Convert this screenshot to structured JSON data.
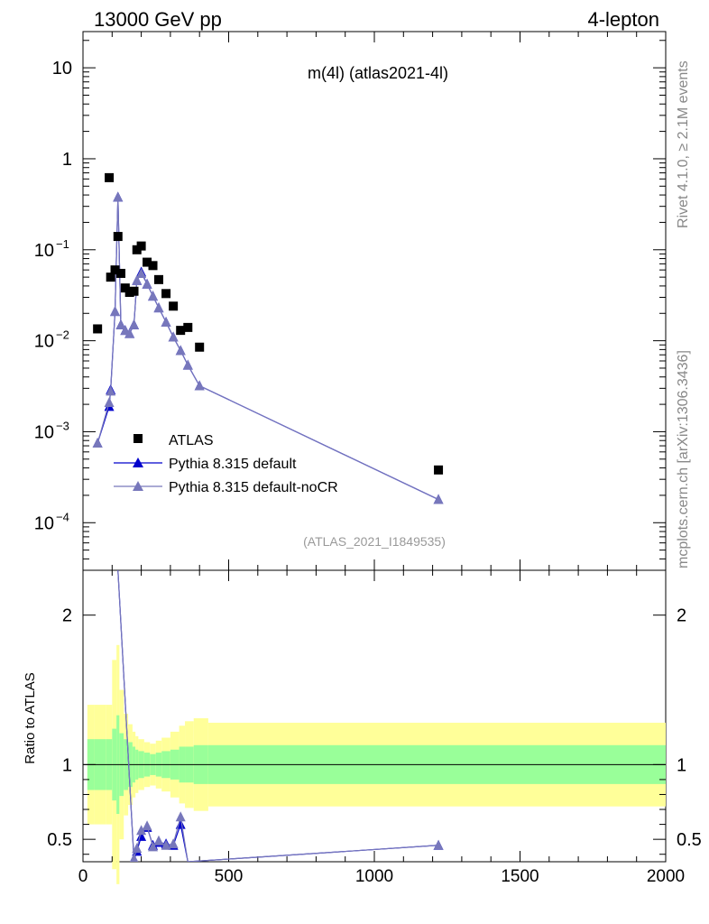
{
  "header": {
    "left": "13000 GeV pp",
    "right": "4-lepton"
  },
  "side": {
    "top": "Rivet 4.1.0, ≥ 2.1M events",
    "bottom": "mcplots.cern.ch [arXiv:1306.3436]"
  },
  "colors": {
    "data": "#000000",
    "default": "#0000cc",
    "noCR": "#7777bb",
    "band_inner": "#99ff99",
    "band_outer": "#ffff99"
  },
  "chart_data": {
    "type": "scatter",
    "title": "m(4l) (atlas2021-4l)",
    "analysis_tag": "(ATLAS_2021_I1849535)",
    "ratio_ylabel": "Ratio to ATLAS",
    "xlim": [
      0,
      2000
    ],
    "ylim_main": [
      3e-05,
      25
    ],
    "ylim_ratio": [
      0.35,
      2.3
    ],
    "x_ticks": [
      "0",
      "500",
      "1000",
      "1500",
      "2000"
    ],
    "y_ticks_main": [
      {
        "value": 10,
        "base": "10",
        "exp": ""
      },
      {
        "value": 1,
        "base": "1",
        "exp": ""
      },
      {
        "value": 0.1,
        "base": "10",
        "exp": "−1"
      },
      {
        "value": 0.01,
        "base": "10",
        "exp": "−2"
      },
      {
        "value": 0.001,
        "base": "10",
        "exp": "−3"
      },
      {
        "value": 0.0001,
        "base": "10",
        "exp": "−4"
      }
    ],
    "y_ticks_ratio": [
      "0.5",
      "1",
      "2"
    ],
    "legend": [
      {
        "label": "ATLAS",
        "marker": "square"
      },
      {
        "label": "Pythia 8.315 default",
        "marker": "triangle"
      },
      {
        "label": "Pythia 8.315 default-noCR",
        "marker": "triangle"
      }
    ],
    "data_points": [
      {
        "x": 50,
        "y": 0.0135
      },
      {
        "x": 90,
        "y": 0.62
      },
      {
        "x": 95,
        "y": 0.05
      },
      {
        "x": 110,
        "y": 0.06
      },
      {
        "x": 120,
        "y": 0.14
      },
      {
        "x": 130,
        "y": 0.055
      },
      {
        "x": 145,
        "y": 0.038
      },
      {
        "x": 160,
        "y": 0.034
      },
      {
        "x": 175,
        "y": 0.035
      },
      {
        "x": 185,
        "y": 0.1
      },
      {
        "x": 200,
        "y": 0.11
      },
      {
        "x": 220,
        "y": 0.073
      },
      {
        "x": 240,
        "y": 0.067
      },
      {
        "x": 260,
        "y": 0.047
      },
      {
        "x": 285,
        "y": 0.033
      },
      {
        "x": 310,
        "y": 0.024
      },
      {
        "x": 335,
        "y": 0.013
      },
      {
        "x": 360,
        "y": 0.014
      },
      {
        "x": 400,
        "y": 0.0085
      },
      {
        "x": 1220,
        "y": 0.00038
      }
    ],
    "series": [
      {
        "name": "Pythia 8.315 default",
        "x": [
          50,
          90,
          95,
          110,
          120,
          130,
          145,
          160,
          175,
          185,
          200,
          220,
          240,
          260,
          285,
          310,
          335,
          360,
          400,
          1220
        ],
        "y": [
          0.00075,
          0.0019,
          0.0029,
          0.021,
          0.38,
          0.015,
          0.013,
          0.012,
          0.015,
          0.046,
          0.057,
          0.042,
          0.031,
          0.023,
          0.016,
          0.011,
          0.0078,
          0.0054,
          0.0032,
          0.00018
        ]
      },
      {
        "name": "Pythia 8.315 default-noCR",
        "x": [
          50,
          90,
          95,
          110,
          120,
          130,
          145,
          160,
          175,
          185,
          200,
          220,
          240,
          260,
          285,
          310,
          335,
          360,
          400,
          1220
        ],
        "y": [
          0.00075,
          0.0021,
          0.0028,
          0.021,
          0.38,
          0.015,
          0.013,
          0.012,
          0.015,
          0.046,
          0.055,
          0.042,
          0.031,
          0.023,
          0.016,
          0.011,
          0.0078,
          0.0054,
          0.0032,
          0.00018
        ]
      }
    ],
    "ratio_series": [
      {
        "name": "Pythia 8.315 default",
        "x": [
          120,
          175,
          185,
          200,
          220,
          240,
          260,
          285,
          310,
          335,
          360,
          1220
        ],
        "y": [
          2.3,
          0.36,
          0.42,
          0.52,
          0.58,
          0.46,
          0.48,
          0.47,
          0.46,
          0.6,
          0.35,
          0.46
        ]
      },
      {
        "name": "Pythia 8.315 default-noCR",
        "x": [
          120,
          175,
          185,
          200,
          220,
          240,
          260,
          285,
          310,
          335,
          360,
          1220
        ],
        "y": [
          2.3,
          0.37,
          0.44,
          0.56,
          0.59,
          0.45,
          0.49,
          0.46,
          0.47,
          0.65,
          0.35,
          0.46
        ]
      }
    ],
    "ratio_bands": {
      "edges": [
        15,
        40,
        80,
        100,
        115,
        125,
        140,
        155,
        170,
        180,
        190,
        210,
        230,
        250,
        270,
        300,
        330,
        350,
        380,
        430,
        2000
      ],
      "inner": [
        0.17,
        0.17,
        0.17,
        0.24,
        0.33,
        0.21,
        0.17,
        0.15,
        0.12,
        0.1,
        0.09,
        0.08,
        0.07,
        0.08,
        0.09,
        0.1,
        0.12,
        0.12,
        0.13,
        0.13
      ],
      "outer": [
        0.4,
        0.4,
        0.4,
        0.7,
        0.8,
        0.5,
        0.34,
        0.27,
        0.22,
        0.19,
        0.17,
        0.15,
        0.14,
        0.16,
        0.18,
        0.22,
        0.26,
        0.29,
        0.31,
        0.28
      ]
    }
  }
}
